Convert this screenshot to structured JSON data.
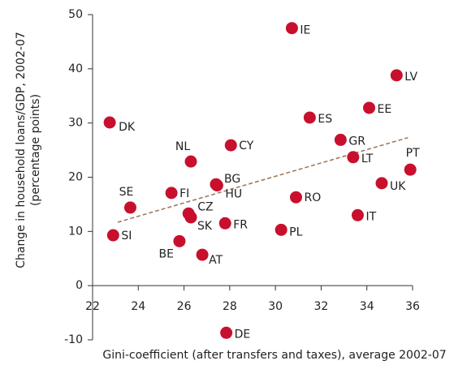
{
  "chart_data": {
    "type": "scatter",
    "x_label": "Gini-coefficient (after transfers and taxes), average 2002-07",
    "y_label": [
      "Change in household loans/GDP, 2002-07",
      "(percentage points)"
    ],
    "labels": [
      "IE",
      "LV",
      "EE",
      "DK",
      "ES",
      "GR",
      "CY",
      "NL",
      "LT",
      "PT",
      "BG",
      "HU",
      "FI",
      "UK",
      "RO",
      "SE",
      "CZ",
      "SK",
      "IT",
      "FR",
      "PL",
      "SI",
      "BE",
      "AT",
      "DE"
    ],
    "x": [
      30.72,
      35.3,
      34.1,
      22.75,
      31.5,
      32.85,
      28.05,
      26.3,
      33.4,
      35.9,
      27.4,
      27.45,
      25.45,
      34.65,
      30.9,
      23.65,
      26.2,
      26.3,
      33.6,
      27.8,
      30.25,
      22.9,
      25.8,
      26.8,
      27.85
    ],
    "values": [
      47.5,
      38.8,
      32.8,
      30.1,
      31.0,
      26.9,
      25.9,
      22.9,
      23.7,
      21.4,
      18.7,
      18.5,
      17.1,
      18.9,
      16.3,
      14.4,
      13.3,
      12.6,
      13.0,
      11.5,
      10.3,
      9.3,
      8.2,
      5.7,
      -8.7
    ],
    "color": "#c8102e",
    "trendline": {
      "x": [
        23.1,
        35.8
      ],
      "y": [
        11.7,
        27.3
      ],
      "color": "#a07a5a"
    },
    "xlim": [
      22,
      36
    ],
    "xticks": [
      22,
      24,
      26,
      28,
      30,
      32,
      34,
      36
    ],
    "ylim": [
      -10,
      50
    ],
    "yticks": [
      -10,
      0,
      10,
      20,
      30,
      40,
      50
    ]
  }
}
